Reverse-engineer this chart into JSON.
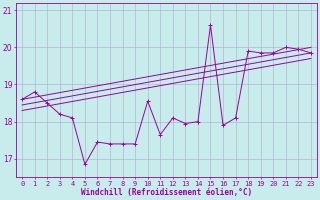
{
  "xlabel": "Windchill (Refroidissement éolien,°C)",
  "bg_color": "#c8ecec",
  "line_color": "#990099",
  "grid_color": "#aaaacc",
  "x_values": [
    0,
    1,
    2,
    3,
    4,
    5,
    6,
    7,
    8,
    9,
    10,
    11,
    12,
    13,
    14,
    15,
    16,
    17,
    18,
    19,
    20,
    21,
    22,
    23
  ],
  "y_main": [
    18.6,
    18.8,
    18.5,
    18.2,
    18.1,
    16.85,
    17.45,
    17.4,
    17.4,
    17.4,
    18.55,
    17.65,
    18.1,
    17.95,
    18.0,
    20.6,
    17.9,
    18.1,
    19.9,
    19.85,
    19.85,
    20.0,
    19.95,
    19.85
  ],
  "reg_start1": 18.6,
  "reg_end1": 20.0,
  "reg_start2": 18.45,
  "reg_end2": 19.85,
  "reg_start3": 18.3,
  "reg_end3": 19.7,
  "ylim": [
    16.5,
    21.2
  ],
  "yticks": [
    17,
    18,
    19,
    20,
    21
  ],
  "xticks": [
    0,
    1,
    2,
    3,
    4,
    5,
    6,
    7,
    8,
    9,
    10,
    11,
    12,
    13,
    14,
    15,
    16,
    17,
    18,
    19,
    20,
    21,
    22,
    23
  ],
  "tick_fontsize": 5.0,
  "xlabel_fontsize": 5.5
}
